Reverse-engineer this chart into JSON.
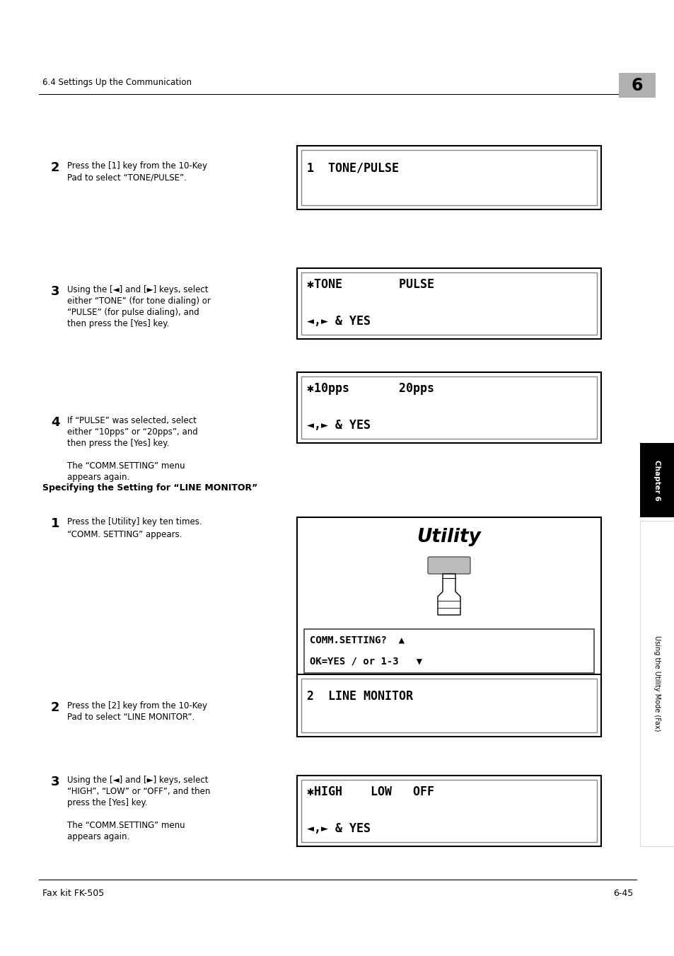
{
  "bg_color": "#ffffff",
  "header_text": "6.4 Settings Up the Communication",
  "header_num": "6",
  "footer_left": "Fax kit FK-505",
  "footer_right": "6-45",
  "section2_text": [
    "Press the [1] key from the 10-Key",
    "Pad to select “TONE/PULSE”."
  ],
  "section2_display": [
    "1  TONE/PULSE",
    ""
  ],
  "section3_text": [
    "Using the [◄] and [►] keys, select",
    "either “TONE” (for tone dialing) or",
    "“PULSE” (for pulse dialing), and",
    "then press the [Yes] key."
  ],
  "section3_display": [
    "✱TONE        PULSE",
    "◄,► & YES"
  ],
  "section4_text": [
    "If “PULSE” was selected, select",
    "either “10pps” or “20pps”, and",
    "then press the [Yes] key.",
    "",
    "The “COMM.SETTING” menu",
    "appears again."
  ],
  "section4_display": [
    "✱10pps       20pps",
    "◄,► & YES"
  ],
  "subsection_title": "Specifying the Setting for “LINE MONITOR”",
  "sub1_text": [
    "Press the [Utility] key ten times.",
    "",
    "“COMM. SETTING” appears."
  ],
  "sub1_display_line1": "COMM.SETTING?  ▲",
  "sub1_display_line2": "OK=YES / or 1-3   ▼",
  "sub2_text": [
    "Press the [2] key from the 10-Key",
    "Pad to select “LINE MONITOR”."
  ],
  "sub2_display": [
    "2  LINE MONITOR",
    ""
  ],
  "sub3_text": [
    "Using the [◄] and [►] keys, select",
    "“HIGH”, “LOW” or “OFF”, and then",
    "press the [Yes] key.",
    "",
    "The “COMM.SETTING” menu",
    "appears again."
  ],
  "sub3_display": [
    "✱HIGH    LOW   OFF",
    "◄,► & YES"
  ],
  "utility_label": "Utility",
  "chapter_tab": "Chapter 6",
  "side_tab": "Using the Utility Mode (Fax)"
}
